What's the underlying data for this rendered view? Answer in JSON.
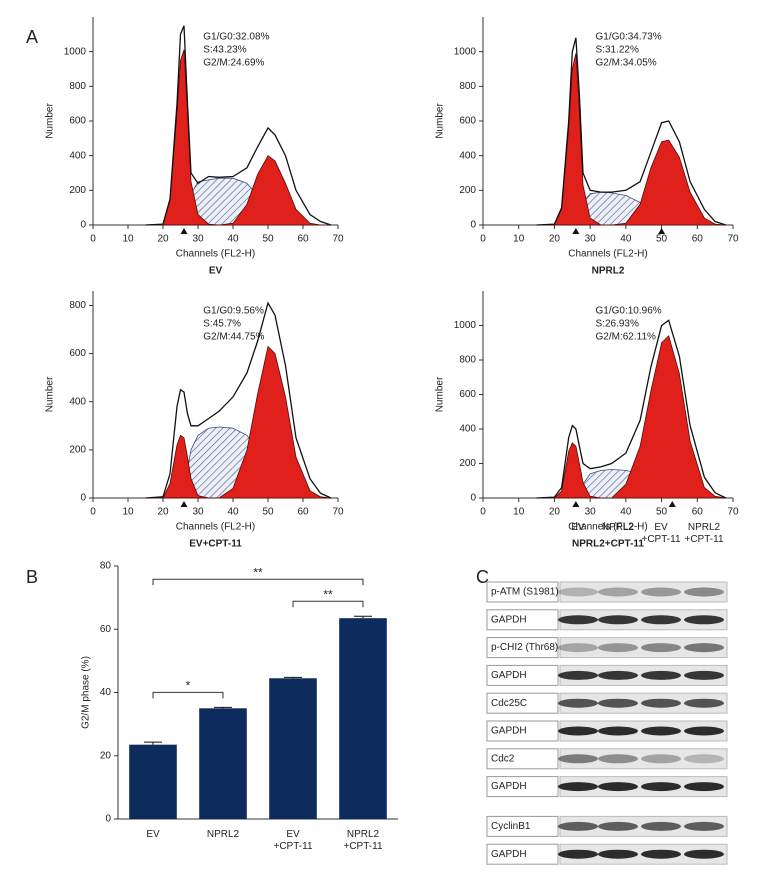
{
  "panel_labels": [
    "A",
    "B",
    "C"
  ],
  "chart_data": [
    {
      "type": "line",
      "title": "EV",
      "xlabel": "Channels (FL2-H)",
      "ylabel": "Number",
      "annotations": [
        "G1/G0:32.08%",
        "S:43.23%",
        "G2/M:24.69%"
      ],
      "xlim": [
        0,
        70
      ],
      "xticks": [
        0,
        10,
        20,
        30,
        40,
        50,
        60,
        70
      ],
      "ylim": [
        0,
        1200
      ],
      "yticks": [
        0,
        200,
        400,
        600,
        800,
        1000
      ],
      "markers": [
        26
      ],
      "x": [
        15,
        20,
        22,
        24,
        25,
        26,
        27,
        28,
        30,
        33,
        36,
        40,
        44,
        47,
        50,
        52,
        55,
        58,
        62,
        65,
        68
      ],
      "series": [
        {
          "color": "#3a4a8a",
          "fill": "hatch",
          "values": [
            0,
            0,
            0,
            0,
            0,
            20,
            100,
            180,
            250,
            260,
            270,
            270,
            240,
            170,
            100,
            60,
            10,
            0,
            0,
            0,
            0
          ]
        },
        {
          "color": "#e0201b",
          "fill": "solid",
          "values": [
            0,
            5,
            140,
            650,
            950,
            1010,
            650,
            250,
            60,
            5,
            0,
            0,
            0,
            0,
            0,
            0,
            0,
            0,
            0,
            0,
            0
          ]
        },
        {
          "color": "#e0201b",
          "fill": "solid",
          "values": [
            0,
            0,
            0,
            0,
            0,
            0,
            0,
            0,
            0,
            0,
            0,
            10,
            120,
            290,
            400,
            370,
            240,
            90,
            10,
            0,
            0
          ]
        },
        {
          "color": "#111111",
          "fill": "none",
          "values": [
            0,
            5,
            150,
            700,
            1100,
            1150,
            700,
            300,
            240,
            280,
            275,
            280,
            330,
            450,
            560,
            520,
            400,
            200,
            60,
            20,
            0
          ]
        }
      ]
    },
    {
      "type": "line",
      "title": "NPRL2",
      "xlabel": "Channels (FL2-H)",
      "ylabel": "Number",
      "annotations": [
        "G1/G0:34.73%",
        "S:31.22%",
        "G2/M:34.05%"
      ],
      "xlim": [
        0,
        70
      ],
      "xticks": [
        0,
        10,
        20,
        30,
        40,
        50,
        60,
        70
      ],
      "ylim": [
        0,
        1200
      ],
      "yticks": [
        0,
        200,
        400,
        600,
        800,
        1000
      ],
      "markers": [
        26,
        50
      ],
      "x": [
        15,
        20,
        22,
        24,
        25,
        26,
        27,
        28,
        30,
        33,
        36,
        40,
        44,
        47,
        50,
        52,
        55,
        58,
        62,
        65,
        68
      ],
      "series": [
        {
          "color": "#3a4a8a",
          "fill": "hatch",
          "values": [
            0,
            0,
            0,
            0,
            0,
            5,
            60,
            130,
            180,
            190,
            185,
            170,
            130,
            80,
            40,
            20,
            5,
            0,
            0,
            0,
            0
          ]
        },
        {
          "color": "#e0201b",
          "fill": "solid",
          "values": [
            0,
            5,
            90,
            560,
            900,
            990,
            650,
            230,
            40,
            0,
            0,
            0,
            0,
            0,
            0,
            0,
            0,
            0,
            0,
            0,
            0
          ]
        },
        {
          "color": "#e0201b",
          "fill": "solid",
          "values": [
            0,
            0,
            0,
            0,
            0,
            0,
            0,
            0,
            0,
            0,
            0,
            10,
            120,
            330,
            480,
            490,
            390,
            190,
            40,
            5,
            0
          ]
        },
        {
          "color": "#111111",
          "fill": "none",
          "values": [
            0,
            5,
            100,
            600,
            1000,
            1080,
            750,
            300,
            200,
            190,
            190,
            200,
            250,
            420,
            590,
            600,
            480,
            250,
            90,
            20,
            0
          ]
        }
      ]
    },
    {
      "type": "line",
      "title": "EV+CPT-11",
      "xlabel": "Channels (FL2-H)",
      "ylabel": "Number",
      "annotations": [
        "G1/G0:9.56%",
        "S:45.7%",
        "G2/M:44.75%"
      ],
      "xlim": [
        0,
        70
      ],
      "xticks": [
        0,
        10,
        20,
        30,
        40,
        50,
        60,
        70
      ],
      "ylim": [
        0,
        860
      ],
      "yticks": [
        0,
        200,
        400,
        600,
        800
      ],
      "markers": [
        26
      ],
      "x": [
        15,
        20,
        22,
        24,
        25,
        26,
        27,
        28,
        30,
        33,
        36,
        40,
        44,
        47,
        50,
        52,
        55,
        58,
        62,
        65,
        68
      ],
      "series": [
        {
          "color": "#3a4a8a",
          "fill": "hatch",
          "values": [
            0,
            0,
            0,
            0,
            20,
            50,
            120,
            200,
            260,
            290,
            295,
            290,
            260,
            200,
            140,
            90,
            30,
            5,
            0,
            0,
            0
          ]
        },
        {
          "color": "#e0201b",
          "fill": "solid",
          "values": [
            0,
            0,
            60,
            220,
            260,
            250,
            170,
            80,
            10,
            0,
            0,
            0,
            0,
            0,
            0,
            0,
            0,
            0,
            0,
            0,
            0
          ]
        },
        {
          "color": "#e0201b",
          "fill": "solid",
          "values": [
            0,
            0,
            0,
            0,
            0,
            0,
            0,
            0,
            0,
            0,
            0,
            40,
            200,
            430,
            630,
            600,
            420,
            170,
            30,
            5,
            0
          ]
        },
        {
          "color": "#111111",
          "fill": "none",
          "values": [
            0,
            5,
            100,
            380,
            450,
            440,
            350,
            300,
            300,
            330,
            360,
            420,
            520,
            650,
            810,
            760,
            550,
            250,
            80,
            20,
            0
          ]
        }
      ]
    },
    {
      "type": "line",
      "title": "NPRL2+CPT-11",
      "xlabel": "Channels (FL2-H)",
      "ylabel": "Number",
      "annotations": [
        "G1/G0:10.96%",
        "S:26.93%",
        "G2/M:62.11%"
      ],
      "xlim": [
        0,
        70
      ],
      "xticks": [
        0,
        10,
        20,
        30,
        40,
        50,
        60,
        70
      ],
      "ylim": [
        0,
        1200
      ],
      "yticks": [
        0,
        200,
        400,
        600,
        800,
        1000
      ],
      "markers": [
        26,
        53
      ],
      "x": [
        15,
        20,
        22,
        24,
        25,
        26,
        27,
        28,
        30,
        33,
        36,
        40,
        44,
        47,
        50,
        52,
        55,
        58,
        62,
        65,
        68
      ],
      "series": [
        {
          "color": "#3a4a8a",
          "fill": "hatch",
          "values": [
            0,
            0,
            0,
            0,
            0,
            10,
            40,
            80,
            140,
            160,
            165,
            160,
            140,
            100,
            60,
            30,
            10,
            0,
            0,
            0,
            0
          ]
        },
        {
          "color": "#e0201b",
          "fill": "solid",
          "values": [
            0,
            0,
            40,
            270,
            320,
            300,
            200,
            90,
            10,
            0,
            0,
            0,
            0,
            0,
            0,
            0,
            0,
            0,
            0,
            0,
            0
          ]
        },
        {
          "color": "#e0201b",
          "fill": "solid",
          "values": [
            0,
            0,
            0,
            0,
            0,
            0,
            0,
            0,
            0,
            0,
            0,
            80,
            300,
            620,
            900,
            940,
            720,
            330,
            60,
            10,
            0
          ]
        },
        {
          "color": "#111111",
          "fill": "none",
          "values": [
            0,
            5,
            60,
            350,
            420,
            400,
            300,
            200,
            170,
            180,
            200,
            260,
            450,
            760,
            1000,
            1030,
            820,
            420,
            120,
            30,
            0
          ]
        }
      ]
    },
    {
      "type": "bar",
      "ylabel": "G2/M phase (%)",
      "categories": [
        "EV",
        "NPRL2",
        "EV\n+CPT-11",
        "NPRL2\n+CPT-11"
      ],
      "values": [
        23.5,
        35,
        44.5,
        63.5
      ],
      "errors": [
        0.8,
        0.3,
        0.3,
        0.6
      ],
      "color": "#0d2b5c",
      "ylim": [
        0,
        80
      ],
      "yticks": [
        0,
        20,
        40,
        60,
        80
      ],
      "significance": [
        {
          "pair": [
            0,
            1
          ],
          "label": "*"
        },
        {
          "pair": [
            2,
            3
          ],
          "label": "**"
        },
        {
          "pair": [
            0,
            3
          ],
          "label": "**"
        }
      ]
    }
  ],
  "blot": {
    "lanes": [
      "EV",
      "NPRL2",
      "EV\n+CPT-11",
      "NPRL2\n+CPT-11"
    ],
    "rows": [
      "p-ATM (S1981)",
      "GAPDH",
      "p-CHI2 (Thr68)",
      "GAPDH",
      "Cdc25C",
      "GAPDH",
      "Cdc2",
      "GAPDH",
      "CyclinB1",
      "GAPDH"
    ]
  }
}
